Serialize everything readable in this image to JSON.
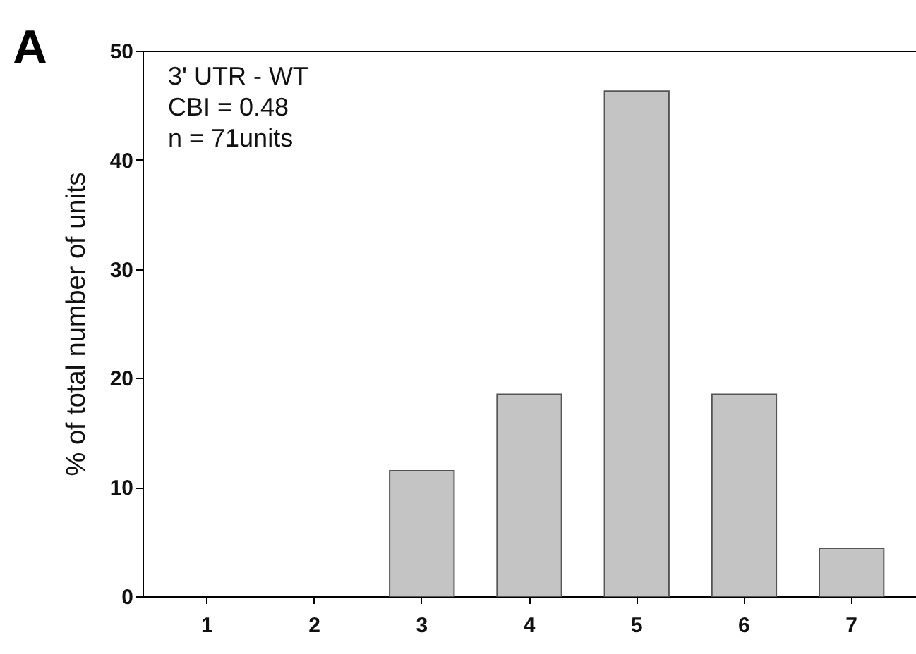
{
  "chart_data": {
    "type": "bar",
    "ylabel": "% of total number of units",
    "categories": [
      "1",
      "2",
      "3",
      "4",
      "5",
      "6",
      "7"
    ],
    "values": [
      0,
      0,
      11.5,
      18.5,
      46.3,
      18.5,
      4.4
    ],
    "color": "#c4c4c4",
    "ylim": [
      0,
      50
    ],
    "yticks": [
      0,
      10,
      20,
      30,
      40,
      50
    ],
    "grid": false,
    "annotations": [
      "A",
      "3' UTR - WT",
      "CBI = 0.48",
      "n = 71units"
    ]
  }
}
